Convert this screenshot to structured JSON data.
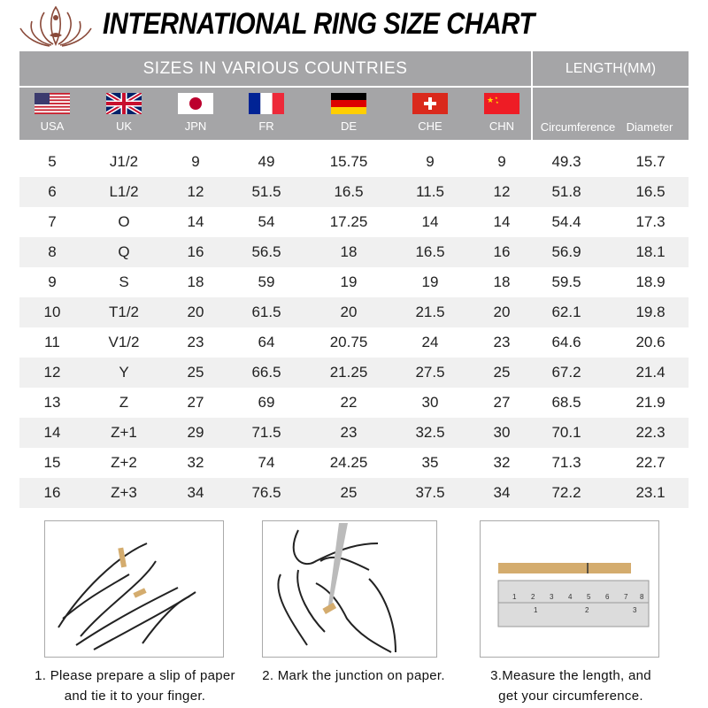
{
  "title": "INTERNATIONAL RING SIZE CHART",
  "header": {
    "sizes_label": "SIZES IN VARIOUS COUNTRIES",
    "length_label": "LENGTH(MM)"
  },
  "countries": [
    {
      "code": "USA",
      "flag": "usa-flag-icon"
    },
    {
      "code": "UK",
      "flag": "uk-flag-icon"
    },
    {
      "code": "JPN",
      "flag": "japan-flag-icon"
    },
    {
      "code": "FR",
      "flag": "france-flag-icon"
    },
    {
      "code": "DE",
      "flag": "germany-flag-icon"
    },
    {
      "code": "CHE",
      "flag": "switzerland-flag-icon"
    },
    {
      "code": "CHN",
      "flag": "china-flag-icon"
    }
  ],
  "length_columns": [
    "Circumference",
    "Diameter"
  ],
  "colors": {
    "header_bg": "#a5a5a7",
    "alt_row": "#f0f0f0",
    "paper_strip": "#d4ac6e"
  },
  "chart_data": {
    "type": "table",
    "title": "INTERNATIONAL RING SIZE CHART",
    "columns": [
      "USA",
      "UK",
      "JPN",
      "FR",
      "DE",
      "CHE",
      "CHN",
      "Circumference",
      "Diameter"
    ],
    "rows": [
      [
        "5",
        "J1/2",
        "9",
        "49",
        "15.75",
        "9",
        "9",
        "49.3",
        "15.7"
      ],
      [
        "6",
        "L1/2",
        "12",
        "51.5",
        "16.5",
        "11.5",
        "12",
        "51.8",
        "16.5"
      ],
      [
        "7",
        "O",
        "14",
        "54",
        "17.25",
        "14",
        "14",
        "54.4",
        "17.3"
      ],
      [
        "8",
        "Q",
        "16",
        "56.5",
        "18",
        "16.5",
        "16",
        "56.9",
        "18.1"
      ],
      [
        "9",
        "S",
        "18",
        "59",
        "19",
        "19",
        "18",
        "59.5",
        "18.9"
      ],
      [
        "10",
        "T1/2",
        "20",
        "61.5",
        "20",
        "21.5",
        "20",
        "62.1",
        "19.8"
      ],
      [
        "11",
        "V1/2",
        "23",
        "64",
        "20.75",
        "24",
        "23",
        "64.6",
        "20.6"
      ],
      [
        "12",
        "Y",
        "25",
        "66.5",
        "21.25",
        "27.5",
        "25",
        "67.2",
        "21.4"
      ],
      [
        "13",
        "Z",
        "27",
        "69",
        "22",
        "30",
        "27",
        "68.5",
        "21.9"
      ],
      [
        "14",
        "Z+1",
        "29",
        "71.5",
        "23",
        "32.5",
        "30",
        "70.1",
        "22.3"
      ],
      [
        "15",
        "Z+2",
        "32",
        "74",
        "24.25",
        "35",
        "32",
        "71.3",
        "22.7"
      ],
      [
        "16",
        "Z+3",
        "34",
        "76.5",
        "25",
        "37.5",
        "34",
        "72.2",
        "23.1"
      ]
    ]
  },
  "steps": [
    {
      "line1": "1. Please prepare a slip of paper",
      "line2": "and tie it to your finger."
    },
    {
      "line1": "2. Mark the junction on paper.",
      "line2": ""
    },
    {
      "line1": "3.Measure the length, and",
      "line2": "get your circumference."
    }
  ]
}
